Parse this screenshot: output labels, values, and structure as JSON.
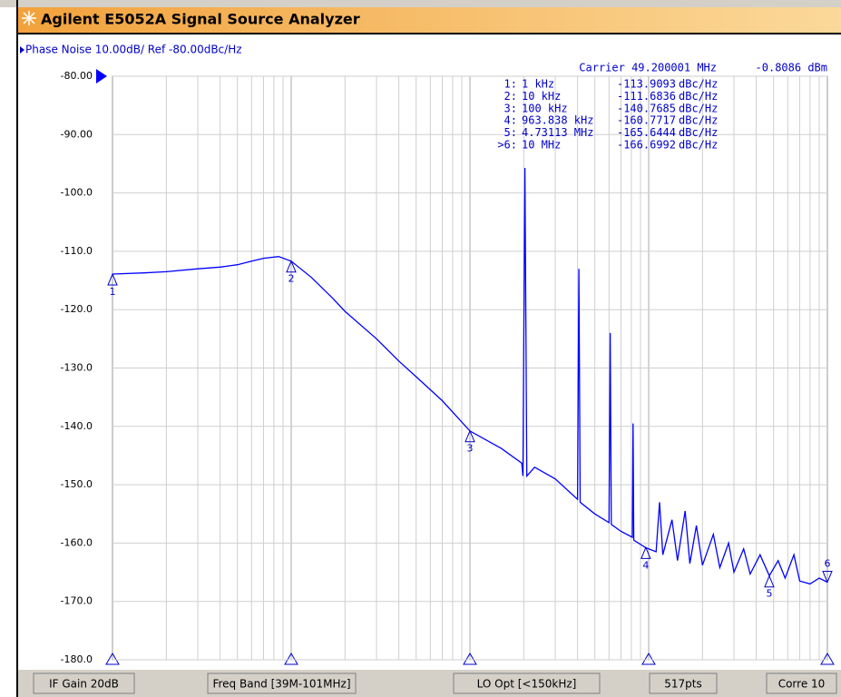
{
  "window": {
    "title": "Agilent E5052A Signal Source Analyzer"
  },
  "trace_header": "Phase Noise 10.00dB/ Ref -80.00dBc/Hz",
  "carrier": {
    "frequency": "Carrier 49.200001 MHz",
    "power": "-0.8086 dBm"
  },
  "chart_data": {
    "type": "line",
    "xlog": true,
    "xlim": [
      1000,
      10000000
    ],
    "ylim": [
      -180,
      -80
    ],
    "yticks": [
      {
        "value": -80,
        "label": "-80.00"
      },
      {
        "value": -90,
        "label": "-90.00"
      },
      {
        "value": -100,
        "label": "-100.0"
      },
      {
        "value": -110,
        "label": "-110.0"
      },
      {
        "value": -120,
        "label": "-120.0"
      },
      {
        "value": -130,
        "label": "-130.0"
      },
      {
        "value": -140,
        "label": "-140.0"
      },
      {
        "value": -150,
        "label": "-150.0"
      },
      {
        "value": -160,
        "label": "-160.0"
      },
      {
        "value": -170,
        "label": "-170.0"
      },
      {
        "value": -180,
        "label": "-180.0"
      }
    ],
    "grid": true,
    "series": [
      {
        "color": "#0000ff",
        "x": [
          1000,
          1500,
          2000,
          3000,
          4000,
          5000,
          6000,
          7000,
          8500,
          10000,
          13000,
          17000,
          20000,
          30000,
          40000,
          50000,
          70000,
          100000,
          150000,
          195000,
          198000,
          203000,
          208000,
          230000,
          300000,
          400000,
          407000,
          414000,
          500000,
          600000,
          609000,
          618000,
          700000,
          810000,
          818000,
          826000,
          963838,
          1100000,
          1150000,
          1200000,
          1350000,
          1450000,
          1600000,
          1700000,
          1850000,
          2000000,
          2300000,
          2500000,
          2800000,
          3000000,
          3400000,
          3700000,
          4200000,
          4731130,
          5300000,
          5800000,
          6500000,
          7000000,
          8000000,
          9000000,
          10000000
        ],
        "values": [
          -113.9,
          -113.7,
          -113.5,
          -113.0,
          -112.7,
          -112.3,
          -111.7,
          -111.2,
          -110.9,
          -111.7,
          -114.5,
          -118,
          -120.3,
          -125,
          -128.8,
          -131.5,
          -135.6,
          -140.8,
          -143.8,
          -146.3,
          -148.5,
          -95.7,
          -148.5,
          -147,
          -149,
          -152.5,
          -113,
          -153,
          -155,
          -156.5,
          -124,
          -156.8,
          -158,
          -159,
          -139.5,
          -159.5,
          -160.8,
          -161.5,
          -153,
          -162,
          -156,
          -163,
          -154.5,
          -163.5,
          -157,
          -163.8,
          -158.5,
          -164.2,
          -160,
          -165,
          -161,
          -165.3,
          -162,
          -165.6,
          -163,
          -166,
          -162,
          -166.5,
          -167,
          -166,
          -166.7
        ]
      }
    ],
    "markers": [
      {
        "id": "1:",
        "tag": "1",
        "freq": {
          "value": 1000,
          "label": "1 kHz"
        },
        "value": -113.9093,
        "unit": "dBc/Hz"
      },
      {
        "id": "2:",
        "tag": "2",
        "freq": {
          "value": 10000,
          "label": "10 kHz"
        },
        "value": -111.6836,
        "unit": "dBc/Hz"
      },
      {
        "id": "3:",
        "tag": "3",
        "freq": {
          "value": 100000,
          "label": "100 kHz"
        },
        "value": -140.7685,
        "unit": "dBc/Hz"
      },
      {
        "id": "4:",
        "tag": "4",
        "freq": {
          "value": 963838,
          "label": "963.838 kHz"
        },
        "value": -160.7717,
        "unit": "dBc/Hz"
      },
      {
        "id": "5:",
        "tag": "5",
        "freq": {
          "value": 4731130,
          "label": "4.73113 MHz"
        },
        "value": -165.6444,
        "unit": "dBc/Hz"
      },
      {
        "id": ">6:",
        "tag": "6",
        "freq": {
          "value": 10000000,
          "label": "10 MHz"
        },
        "value": -166.6992,
        "unit": "dBc/Hz"
      }
    ]
  },
  "status_bar": [
    "IF Gain 20dB",
    "Freq Band [39M-101MHz]",
    "LO Opt [<150kHz]",
    "517pts",
    "Corre 10"
  ]
}
